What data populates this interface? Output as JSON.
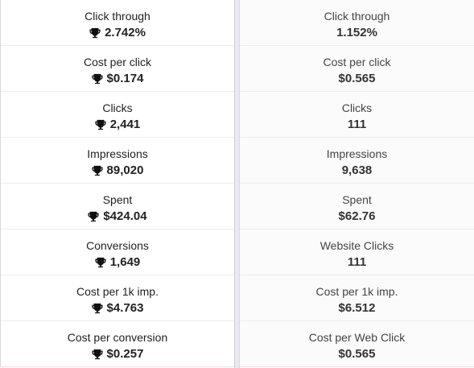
{
  "left_column": {
    "metrics": [
      {
        "label": "Click through",
        "value": "2.742%",
        "icon": "trophy-icon"
      },
      {
        "label": "Cost per click",
        "value": "$0.174",
        "icon": "trophy-icon"
      },
      {
        "label": "Clicks",
        "value": "2,441",
        "icon": "trophy-icon"
      },
      {
        "label": "Impressions",
        "value": "89,020",
        "icon": "trophy-icon"
      },
      {
        "label": "Spent",
        "value": "$424.04",
        "icon": "trophy-icon"
      },
      {
        "label": "Conversions",
        "value": "1,649",
        "icon": "trophy-icon"
      },
      {
        "label": "Cost per 1k imp.",
        "value": "$4.763",
        "icon": "trophy-icon"
      },
      {
        "label": "Cost per conversion",
        "value": "$0.257",
        "icon": "trophy-icon"
      }
    ]
  },
  "right_column": {
    "metrics": [
      {
        "label": "Click through",
        "value": "1.152%"
      },
      {
        "label": "Cost per click",
        "value": "$0.565"
      },
      {
        "label": "Clicks",
        "value": "111"
      },
      {
        "label": "Impressions",
        "value": "9,638"
      },
      {
        "label": "Spent",
        "value": "$62.76"
      },
      {
        "label": "Website Clicks",
        "value": "111"
      },
      {
        "label": "Cost per 1k imp.",
        "value": "$6.512"
      },
      {
        "label": "Cost per Web Click",
        "value": "$0.565"
      }
    ]
  },
  "colors": {
    "text": "#222222",
    "divider": "#e9e9ef",
    "bottom_border": "#f2d9f2"
  }
}
